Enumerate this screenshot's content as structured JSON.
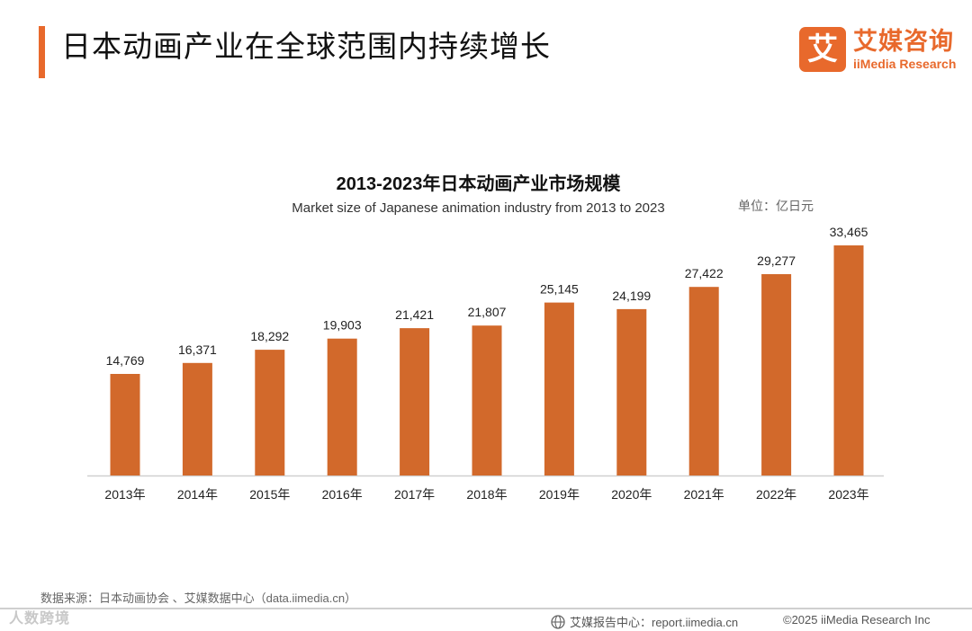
{
  "page_title": "日本动画产业在全球范围内持续增长",
  "logo": {
    "icon_char": "艾",
    "name_cn": "艾媒咨询",
    "name_en": "iiMedia Research"
  },
  "unit_label": "单位：亿日元",
  "source": "数据来源：日本动画协会 、艾媒数据中心（data.iimedia.cn）",
  "watermark": "人数跨境",
  "footer": {
    "center": "艾媒报告中心：report.iimedia.cn",
    "right": "©2025  iiMedia Research  Inc"
  },
  "colors": {
    "accent": "#e8692c",
    "bar": "#d2692b",
    "axis": "#d0d0d0"
  },
  "chart_data": {
    "type": "bar",
    "title": "2013-2023年日本动画产业市场规模",
    "subtitle": "Market size of Japanese animation industry from 2013 to 2023",
    "categories": [
      "2013年",
      "2014年",
      "2015年",
      "2016年",
      "2017年",
      "2018年",
      "2019年",
      "2020年",
      "2021年",
      "2022年",
      "2023年"
    ],
    "values": [
      14769,
      16371,
      18292,
      19903,
      21421,
      21807,
      25145,
      24199,
      27422,
      29277,
      33465
    ],
    "value_labels": [
      "14,769",
      "16,371",
      "18,292",
      "19,903",
      "21,421",
      "21,807",
      "25,145",
      "24,199",
      "27,422",
      "29,277",
      "33,465"
    ],
    "xlabel": "",
    "ylabel": "亿日元",
    "ylim": [
      0,
      40000
    ],
    "grid": false,
    "legend": "none"
  }
}
